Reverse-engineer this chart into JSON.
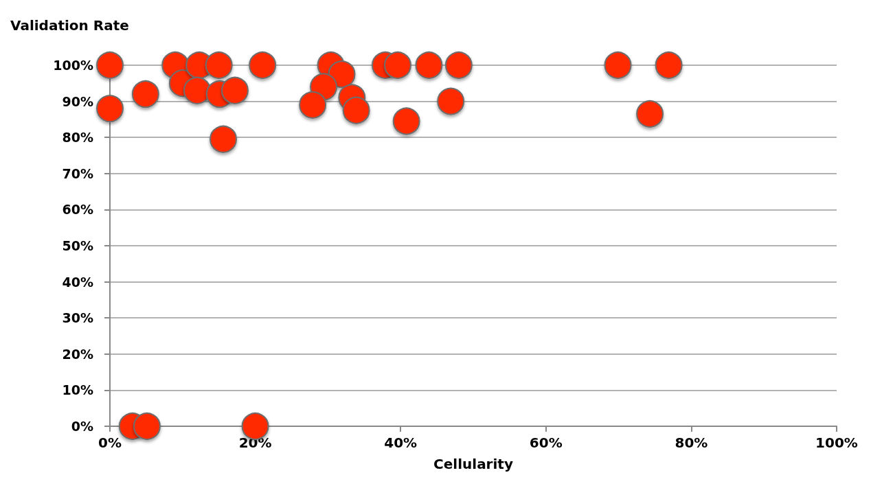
{
  "chart_data": {
    "type": "scatter",
    "xlabel": "Cellularity",
    "ylabel": "Validation Rate",
    "x": [
      0,
      0,
      4.9,
      9.0,
      10.0,
      12.3,
      12.0,
      15.0,
      15.1,
      17.2,
      21.0,
      15.6,
      30.4,
      31.9,
      29.4,
      27.9,
      33.3,
      33.9,
      37.9,
      39.6,
      43.9,
      48.0,
      46.9,
      40.8,
      69.9,
      76.9,
      74.3,
      3.1,
      5.1,
      20.0
    ],
    "series": [
      {
        "color": "#ff2a00",
        "values": [
          100,
          88,
          92,
          100,
          95,
          100,
          93,
          100,
          92,
          93,
          100,
          79.5,
          100,
          97.5,
          94,
          89,
          91,
          87.5,
          100,
          100,
          100,
          100,
          90,
          84.5,
          100,
          100,
          86.5,
          0,
          0,
          0
        ]
      }
    ],
    "xlim": [
      0,
      100
    ],
    "xticks": [
      {
        "value": 0,
        "label": "0%"
      },
      {
        "value": 20,
        "label": "20%"
      },
      {
        "value": 40,
        "label": "40%"
      },
      {
        "value": 60,
        "label": "60%"
      },
      {
        "value": 80,
        "label": "80%"
      },
      {
        "value": 100,
        "label": "100%"
      }
    ],
    "ylim": [
      0,
      100
    ],
    "yticks": [
      {
        "value": 0,
        "label": "0%"
      },
      {
        "value": 10,
        "label": "10%"
      },
      {
        "value": 20,
        "label": "20%"
      },
      {
        "value": 30,
        "label": "30%"
      },
      {
        "value": 40,
        "label": "40%"
      },
      {
        "value": 50,
        "label": "50%"
      },
      {
        "value": 60,
        "label": "60%"
      },
      {
        "value": 70,
        "label": "70%"
      },
      {
        "value": 80,
        "label": "80%"
      },
      {
        "value": 90,
        "label": "90%"
      },
      {
        "value": 100,
        "label": "100%"
      }
    ],
    "grid": "y",
    "marker": "circle"
  }
}
